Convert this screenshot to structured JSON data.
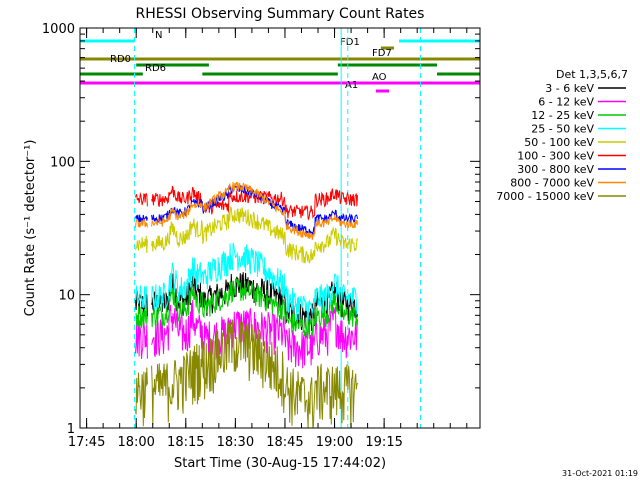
{
  "chart_data": {
    "type": "line",
    "title": "RHESSI Observing Summary Count Rates",
    "xlabel": "Start Time (30-Aug-15 17:44:02)",
    "ylabel": "Count Rate (s⁻¹ detector⁻¹)",
    "yscale": "log",
    "ylim": [
      1,
      1000
    ],
    "xlim_minutes": [
      -1,
      120
    ],
    "x_ticks": [
      {
        "label": "17:45",
        "minute": 1
      },
      {
        "label": "18:00",
        "minute": 16
      },
      {
        "label": "18:15",
        "minute": 31
      },
      {
        "label": "18:30",
        "minute": 46
      },
      {
        "label": "18:45",
        "minute": 61
      },
      {
        "label": "19:00",
        "minute": 76
      },
      {
        "label": "19:15",
        "minute": 91
      }
    ],
    "y_ticks": [
      {
        "label": "1",
        "value": 1
      },
      {
        "label": "10",
        "value": 10
      },
      {
        "label": "100",
        "value": 100
      },
      {
        "label": "1000",
        "value": 1000
      }
    ],
    "legend_title": "Det 1,3,5,6,7",
    "legend_position": "right",
    "series": [
      {
        "name": "3 - 6 keV",
        "color": "#000000",
        "base": 8.5,
        "peak": 12,
        "flare": 3,
        "noise": 0.25
      },
      {
        "name": "6 - 12 keV",
        "color": "#ff00ff",
        "base": 5.0,
        "peak": 6,
        "flare": 2,
        "noise": 0.35
      },
      {
        "name": "12 - 25 keV",
        "color": "#00cc00",
        "base": 7.0,
        "peak": 11,
        "flare": 3,
        "noise": 0.2
      },
      {
        "name": "25 - 50 keV",
        "color": "#00ffff",
        "base": 9.5,
        "peak": 20,
        "flare": 4,
        "noise": 0.25
      },
      {
        "name": "50 - 100 keV",
        "color": "#cccc00",
        "base": 24,
        "peak": 40,
        "flare": 6,
        "noise": 0.15
      },
      {
        "name": "100 - 300 keV",
        "color": "#ff0000",
        "base": 52,
        "peak": 55,
        "flare": 8,
        "noise": 0.12
      },
      {
        "name": "300 - 800 keV",
        "color": "#0000ff",
        "base": 37,
        "peak": 62,
        "flare": 5,
        "noise": 0.08
      },
      {
        "name": "800 - 7000 keV",
        "color": "#ff8800",
        "base": 34,
        "peak": 65,
        "flare": 5,
        "noise": 0.08
      },
      {
        "name": "7000 - 15000 keV",
        "color": "#888800",
        "base": 2.0,
        "peak": 4.5,
        "flare": 0,
        "noise": 0.5
      }
    ],
    "data_gaps_minutes": [
      [
        -1,
        15.8
      ],
      [
        19.5,
        20.6
      ],
      [
        49.0,
        48.0
      ],
      [
        83,
        120
      ]
    ],
    "flag_bars": [
      {
        "label": "N",
        "color": "#00ffff",
        "row": 1,
        "segments": [
          [
            -1,
            15.5
          ],
          [
            95.5,
            120
          ]
        ]
      },
      {
        "label": "FD1",
        "color": "#888800",
        "row": 2,
        "segments": [
          [
            90.0,
            94.0
          ]
        ]
      },
      {
        "label": "FD7",
        "color": "#888800",
        "row": 3,
        "segments": [
          [
            -1,
            120
          ]
        ]
      },
      {
        "label": "RD0",
        "color": "#008800",
        "row": 4,
        "segments": [
          [
            16.0,
            38.0
          ],
          [
            77.0,
            107.0
          ]
        ]
      },
      {
        "label": "RD6",
        "color": "#008800",
        "row": 5,
        "segments": [
          [
            -1,
            18.0
          ],
          [
            36.0,
            77.0
          ],
          [
            107.0,
            120
          ]
        ]
      },
      {
        "label": "AO",
        "color": "#ff00ff",
        "row": 6,
        "segments": [
          [
            -1,
            120
          ]
        ]
      },
      {
        "label": "A1",
        "color": "#ff00ff",
        "row": 7,
        "segments": [
          [
            88.5,
            92.5
          ]
        ]
      }
    ],
    "vertical_markers_minutes": [
      {
        "minute": 15.5,
        "color": "#00ffff",
        "style": "dashed"
      },
      {
        "minute": 78.0,
        "color": "#00ffff",
        "style": "solid"
      },
      {
        "minute": 80.0,
        "color": "#00ffff",
        "style": "dashed"
      },
      {
        "minute": 102.0,
        "color": "#00ffff",
        "style": "dashed"
      }
    ]
  },
  "footer_timestamp": "31-Oct-2021 01:19"
}
